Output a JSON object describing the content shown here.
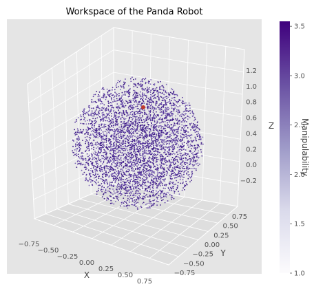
{
  "chart_data": {
    "type": "scatter",
    "subtype": "3d-scatter",
    "title": "Workspace of the Panda Robot",
    "xlabel": "X",
    "ylabel": "Y",
    "zlabel": "Z",
    "x_ticks": [
      "−0.75",
      "−0.50",
      "−0.25",
      "0.00",
      "0.25",
      "0.50",
      "0.75"
    ],
    "y_ticks": [
      "−0.75",
      "−0.50",
      "−0.25",
      "0.00",
      "0.25",
      "0.50",
      "0.75"
    ],
    "z_ticks": [
      "−0.2",
      "0.0",
      "0.2",
      "0.4",
      "0.6",
      "0.8",
      "1.0",
      "1.2"
    ],
    "xlim": [
      -0.9,
      0.9
    ],
    "ylim": [
      -0.9,
      0.9
    ],
    "zlim": [
      -0.45,
      1.35
    ],
    "point_cloud": {
      "shape": "sphere",
      "center": [
        0,
        0,
        0.33
      ],
      "radius": 0.85,
      "color": "#4b2a91"
    },
    "highlight_point": {
      "x": 0.0,
      "y": 0.0,
      "z": 0.8,
      "color": "#c0392b"
    },
    "colorbar": {
      "label": "Manipulability",
      "range": [
        1.0,
        3.55
      ],
      "ticks": [
        "1.0",
        "1.5",
        "2.0",
        "2.5",
        "3.0",
        "3.5"
      ],
      "tick_values": [
        1.0,
        1.5,
        2.0,
        2.5,
        3.0,
        3.5
      ],
      "colormap": "Purples"
    },
    "grid": true,
    "background": "#e5e5e5"
  }
}
